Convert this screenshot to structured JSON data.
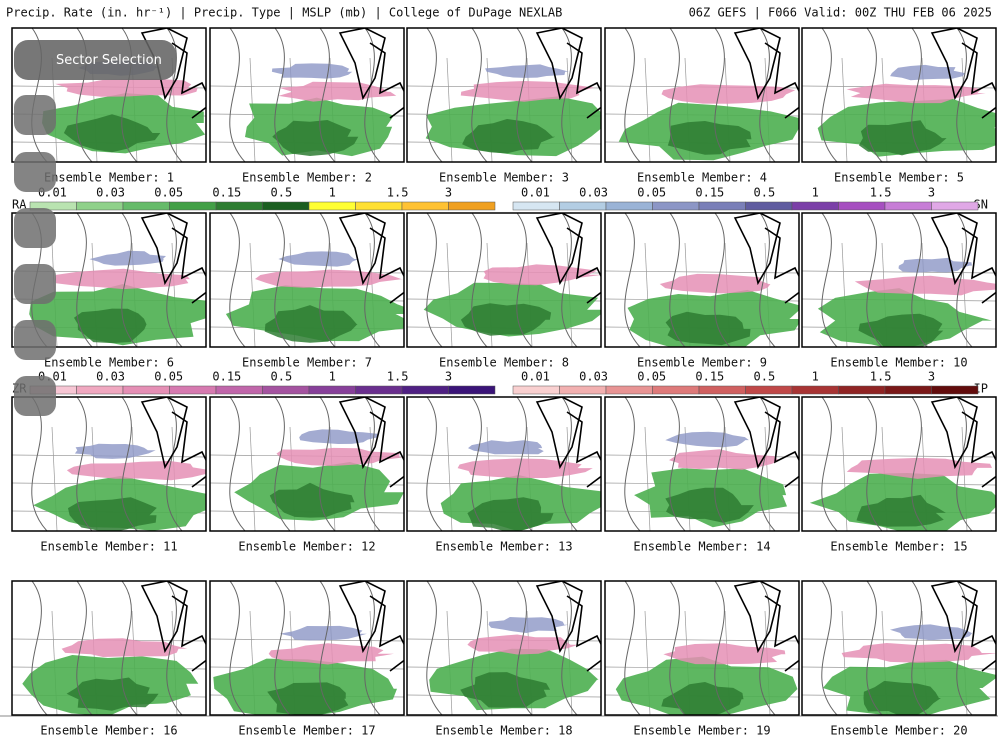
{
  "header": {
    "title": "Precip. Rate (in. hr⁻¹) | Precip. Type | MSLP (mb) | College of DuPage NEXLAB",
    "run": "06Z GEFS | F066 Valid: 00Z THU FEB 06 2025"
  },
  "panels": [
    "Ensemble Member: 1",
    "Ensemble Member: 2",
    "Ensemble Member: 3",
    "Ensemble Member: 4",
    "Ensemble Member: 5",
    "Ensemble Member: 6",
    "Ensemble Member: 7",
    "Ensemble Member: 8",
    "Ensemble Member: 9",
    "Ensemble Member: 10",
    "Ensemble Member: 11",
    "Ensemble Member: 12",
    "Ensemble Member: 13",
    "Ensemble Member: 14",
    "Ensemble Member: 15",
    "Ensemble Member: 16",
    "Ensemble Member: 17",
    "Ensemble Member: 18",
    "Ensemble Member: 19",
    "Ensemble Member: 20"
  ],
  "legends": [
    {
      "label": "RA",
      "ticks": [
        "0.01",
        "0.03",
        "0.05",
        "0.15",
        "0.5",
        "1",
        "1.5",
        "3"
      ],
      "colors": [
        "#b9e3b0",
        "#8fd18a",
        "#66bb6a",
        "#43a047",
        "#2e7d32",
        "#1b5e20",
        "#ffff33",
        "#ffe033",
        "#ffc233",
        "#f0a020"
      ]
    },
    {
      "label": "SN",
      "ticks": [
        "0.01",
        "0.03",
        "0.05",
        "0.15",
        "0.5",
        "1",
        "1.5",
        "3"
      ],
      "colors": [
        "#d6e6f2",
        "#b3cde3",
        "#9ab3d6",
        "#8c96c6",
        "#7a7fb8",
        "#605ca0",
        "#7b3fa8",
        "#a64fc0",
        "#c77dd6",
        "#e0a8e6"
      ]
    },
    {
      "label": "ZR",
      "ticks": [
        "0.01",
        "0.03",
        "0.05",
        "0.15",
        "0.5",
        "1",
        "1.5",
        "3"
      ],
      "colors": [
        "#f7c6d4",
        "#f0a8c0",
        "#e58fb5",
        "#d67ab0",
        "#c066aa",
        "#a453a0",
        "#87409a",
        "#6a2f8e",
        "#4f2083",
        "#3a1478"
      ]
    },
    {
      "label": "IP",
      "ticks": [
        "0.01",
        "0.03",
        "0.05",
        "0.15",
        "0.5",
        "1",
        "1.5",
        "3"
      ],
      "colors": [
        "#f9d0d0",
        "#f2b0b0",
        "#e89494",
        "#de7a7a",
        "#d06060",
        "#c04848",
        "#a83434",
        "#902424",
        "#7a1818",
        "#620c0c"
      ]
    }
  ],
  "menu": {
    "sector": "Sector Selection"
  }
}
